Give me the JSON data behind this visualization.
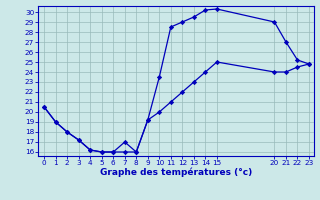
{
  "xlabel": "Graphe des températures (°c)",
  "bg_color": "#cce8e8",
  "line_color": "#0000bb",
  "grid_color": "#99bbbb",
  "xlim_min": -0.5,
  "xlim_max": 23.4,
  "ylim_min": 15.6,
  "ylim_max": 30.6,
  "xticks": [
    0,
    1,
    2,
    3,
    4,
    5,
    6,
    7,
    8,
    9,
    10,
    11,
    12,
    13,
    14,
    15,
    20,
    21,
    22,
    23
  ],
  "yticks": [
    16,
    17,
    18,
    19,
    20,
    21,
    22,
    23,
    24,
    25,
    26,
    27,
    28,
    29,
    30
  ],
  "curve1_x": [
    0,
    1,
    2,
    3,
    4,
    5,
    6,
    7,
    8,
    9,
    10,
    11,
    12,
    13,
    14,
    15,
    20,
    21,
    22,
    23
  ],
  "curve1_y": [
    20.5,
    19.0,
    18.0,
    17.2,
    16.2,
    16.0,
    16.0,
    17.0,
    16.0,
    19.2,
    23.5,
    28.5,
    29.0,
    29.5,
    30.2,
    30.3,
    29.0,
    27.0,
    25.2,
    24.8
  ],
  "curve2_x": [
    0,
    1,
    2,
    3,
    4,
    5,
    6,
    7,
    8,
    9,
    10,
    11,
    12,
    13,
    14,
    15,
    20,
    21,
    22,
    23
  ],
  "curve2_y": [
    20.5,
    19.0,
    18.0,
    17.2,
    16.2,
    16.0,
    16.0,
    16.0,
    16.0,
    19.2,
    20.0,
    21.0,
    22.0,
    23.0,
    24.0,
    25.0,
    24.0,
    24.0,
    24.5,
    24.8
  ],
  "xlabel_fontsize": 6.5,
  "tick_fontsize": 5.2
}
